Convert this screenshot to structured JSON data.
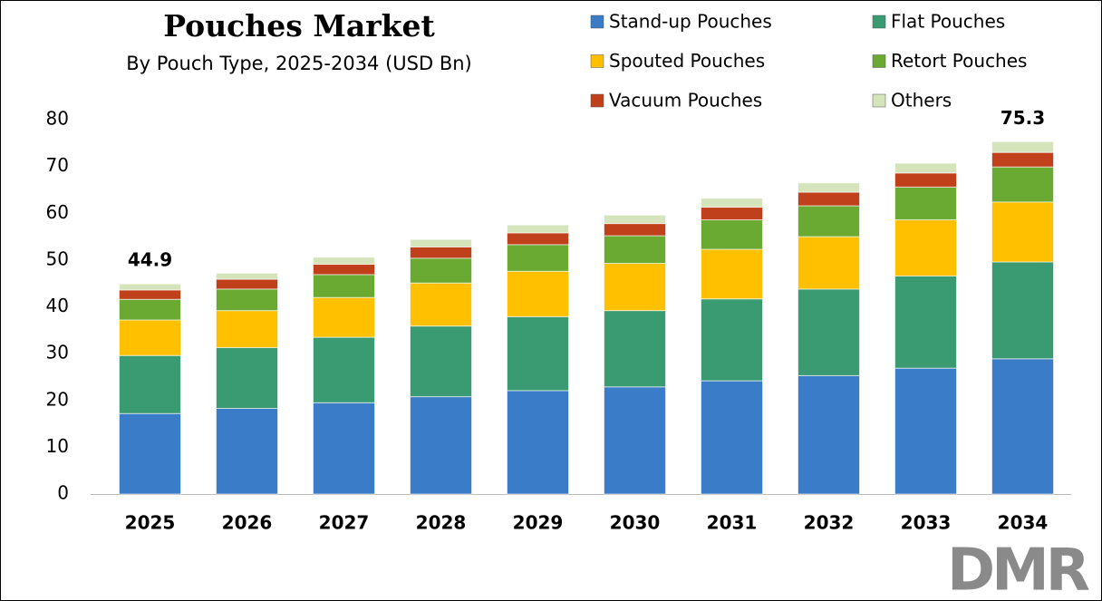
{
  "chart_data": {
    "type": "stacked-bar",
    "title": "Pouches Market",
    "subtitle": "By Pouch Type, 2025-2034 (USD Bn)",
    "categories": [
      "2025",
      "2026",
      "2027",
      "2028",
      "2029",
      "2030",
      "2031",
      "2032",
      "2033",
      "2034"
    ],
    "series": [
      {
        "name": "Stand-up Pouches",
        "color": "#3a7cc7",
        "values": [
          17.2,
          18.3,
          19.5,
          20.8,
          22.1,
          22.9,
          24.2,
          25.3,
          26.9,
          28.9
        ]
      },
      {
        "name": "Flat Pouches",
        "color": "#3a9a72",
        "values": [
          12.4,
          13.0,
          14.0,
          15.1,
          15.8,
          16.3,
          17.5,
          18.5,
          19.7,
          20.7
        ]
      },
      {
        "name": "Spouted Pouches",
        "color": "#ffc000",
        "values": [
          7.6,
          7.9,
          8.5,
          9.2,
          9.7,
          10.1,
          10.6,
          11.2,
          12.0,
          12.8
        ]
      },
      {
        "name": "Retort Pouches",
        "color": "#6aaa32",
        "values": [
          4.4,
          4.6,
          4.9,
          5.3,
          5.7,
          5.9,
          6.3,
          6.6,
          7.0,
          7.5
        ]
      },
      {
        "name": "Vacuum Pouches",
        "color": "#c0401c",
        "values": [
          2.0,
          2.1,
          2.2,
          2.4,
          2.5,
          2.6,
          2.7,
          2.9,
          3.0,
          3.1
        ]
      },
      {
        "name": "Others",
        "color": "#d6e4bc",
        "values": [
          1.3,
          1.3,
          1.5,
          1.6,
          1.7,
          1.8,
          1.9,
          2.0,
          2.1,
          2.3
        ]
      }
    ],
    "totals": [
      {
        "category": "2025",
        "value": 44.9
      },
      {
        "category": "2034",
        "value": 75.3
      }
    ],
    "ylim": [
      0,
      80
    ],
    "yticks": [
      0,
      10,
      20,
      30,
      40,
      50,
      60,
      70,
      80
    ],
    "grid": false,
    "logo": "DMR"
  }
}
